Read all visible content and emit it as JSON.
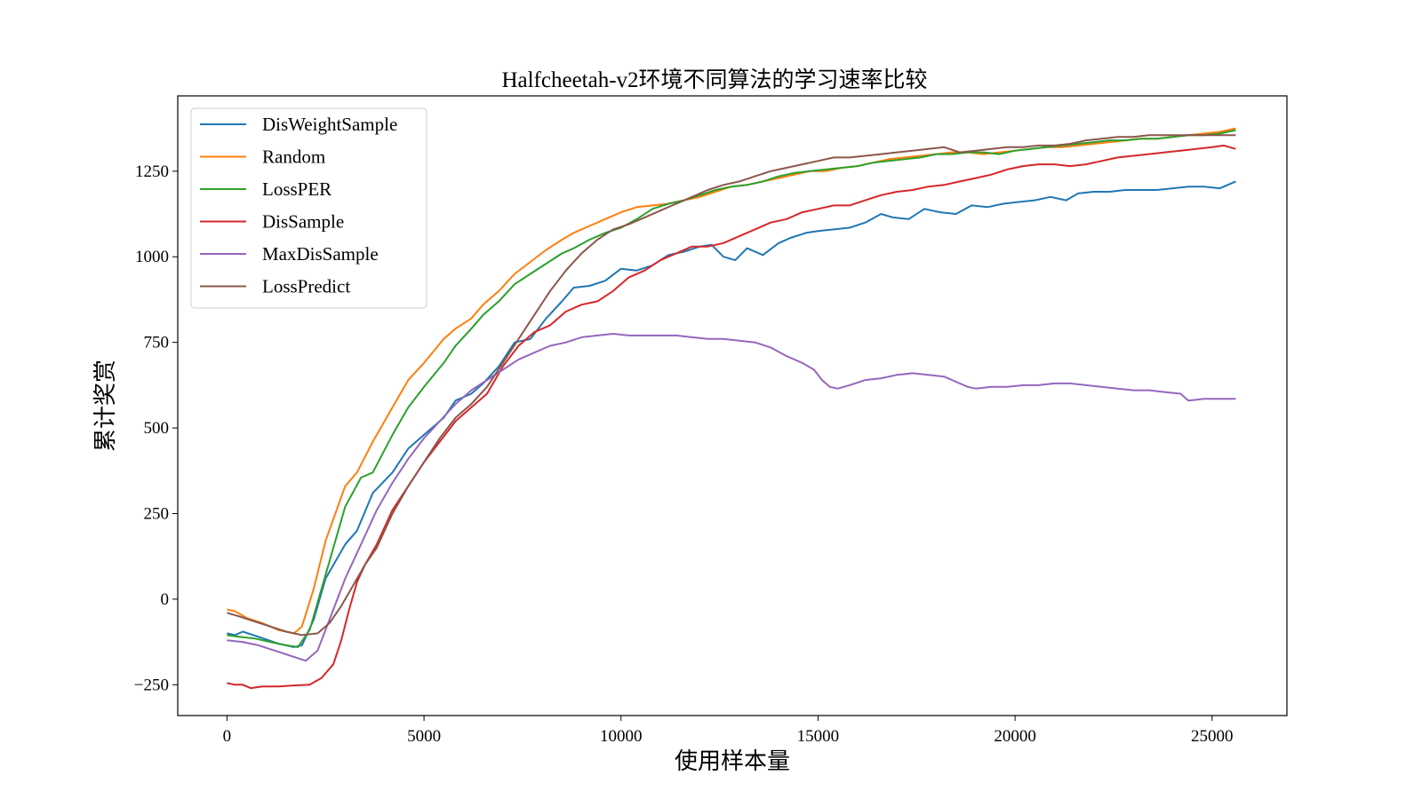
{
  "chart_data": {
    "type": "line",
    "title": "Halfcheetah-v2环境不同算法的学习速率比较",
    "xlabel": "使用样本量",
    "ylabel": "累计奖赏",
    "xlim": [
      -1250,
      26900
    ],
    "ylim": [
      -340,
      1470
    ],
    "xticks": [
      0,
      5000,
      10000,
      15000,
      20000,
      25000
    ],
    "xtick_labels": [
      "0",
      "5000",
      "10000",
      "15000",
      "20000",
      "25000"
    ],
    "yticks": [
      -250,
      0,
      250,
      500,
      750,
      1000,
      1250
    ],
    "ytick_labels": [
      "−250",
      "0",
      "250",
      "500",
      "750",
      "1000",
      "1250"
    ],
    "grid": false,
    "legend_position": "top-left",
    "series": [
      {
        "name": "DisWeightSample",
        "color": "#1f77b4",
        "x": [
          0,
          200,
          400,
          800,
          1300,
          1700,
          1900,
          2200,
          2500,
          3000,
          3300,
          3700,
          4200,
          4600,
          5000,
          5500,
          5800,
          6200,
          6500,
          6900,
          7300,
          7700,
          8100,
          8500,
          8800,
          9200,
          9600,
          10000,
          10400,
          10800,
          11200,
          11600,
          12000,
          12300,
          12600,
          12900,
          13200,
          13600,
          14000,
          14300,
          14700,
          15000,
          15400,
          15800,
          16200,
          16600,
          16900,
          17300,
          17700,
          18100,
          18500,
          18900,
          19300,
          19700,
          20100,
          20500,
          20900,
          21300,
          21600,
          22000,
          22400,
          22800,
          23200,
          23600,
          24000,
          24400,
          24800,
          25200,
          25600
        ],
        "values": [
          -100,
          -105,
          -95,
          -110,
          -130,
          -140,
          -135,
          -60,
          60,
          160,
          200,
          310,
          370,
          440,
          480,
          530,
          580,
          600,
          630,
          680,
          750,
          760,
          820,
          870,
          910,
          915,
          930,
          965,
          960,
          975,
          1005,
          1015,
          1030,
          1035,
          1000,
          990,
          1025,
          1005,
          1040,
          1055,
          1070,
          1075,
          1080,
          1085,
          1100,
          1125,
          1115,
          1110,
          1140,
          1130,
          1125,
          1150,
          1145,
          1155,
          1160,
          1165,
          1175,
          1165,
          1185,
          1190,
          1190,
          1195,
          1195,
          1195,
          1200,
          1205,
          1205,
          1200,
          1220
        ]
      },
      {
        "name": "Random",
        "color": "#ff7f0e",
        "x": [
          0,
          200,
          500,
          900,
          1300,
          1700,
          1900,
          2200,
          2500,
          3000,
          3300,
          3700,
          4200,
          4600,
          5000,
          5500,
          5800,
          6200,
          6500,
          6900,
          7300,
          7700,
          8100,
          8500,
          8800,
          9200,
          9600,
          10000,
          10400,
          10800,
          11200,
          11600,
          12000,
          12400,
          12800,
          13200,
          13600,
          14000,
          14400,
          14800,
          15200,
          15600,
          16000,
          16400,
          16800,
          17200,
          17600,
          18000,
          18400,
          18800,
          19200,
          19600,
          20000,
          20400,
          20800,
          21200,
          21600,
          22000,
          22400,
          22800,
          23200,
          23600,
          24000,
          24400,
          24800,
          25200,
          25600
        ],
        "values": [
          -30,
          -35,
          -55,
          -70,
          -90,
          -100,
          -80,
          30,
          170,
          330,
          370,
          460,
          560,
          640,
          690,
          760,
          790,
          820,
          860,
          900,
          950,
          985,
          1020,
          1050,
          1070,
          1090,
          1110,
          1130,
          1145,
          1150,
          1155,
          1165,
          1175,
          1190,
          1205,
          1210,
          1220,
          1230,
          1240,
          1250,
          1250,
          1260,
          1265,
          1275,
          1285,
          1290,
          1295,
          1300,
          1305,
          1305,
          1300,
          1305,
          1310,
          1315,
          1320,
          1320,
          1325,
          1330,
          1335,
          1340,
          1345,
          1345,
          1350,
          1355,
          1360,
          1365,
          1375
        ]
      },
      {
        "name": "LossPER",
        "color": "#2ca02c",
        "x": [
          0,
          300,
          700,
          1100,
          1500,
          1800,
          2100,
          2400,
          2700,
          3000,
          3400,
          3700,
          4200,
          4600,
          5000,
          5500,
          5800,
          6200,
          6500,
          6900,
          7300,
          7700,
          8100,
          8500,
          8800,
          9200,
          9600,
          10000,
          10400,
          10800,
          11200,
          11600,
          12000,
          12400,
          12800,
          13200,
          13600,
          14000,
          14400,
          14800,
          15200,
          15600,
          16000,
          16400,
          16800,
          17200,
          17600,
          18000,
          18400,
          18800,
          19200,
          19600,
          20000,
          20400,
          20800,
          21200,
          21600,
          22000,
          22400,
          22800,
          23200,
          23600,
          24000,
          24400,
          24800,
          25200,
          25600
        ],
        "values": [
          -105,
          -110,
          -115,
          -125,
          -135,
          -140,
          -90,
          30,
          150,
          270,
          355,
          370,
          480,
          560,
          620,
          690,
          740,
          790,
          830,
          870,
          920,
          950,
          980,
          1010,
          1025,
          1050,
          1070,
          1085,
          1110,
          1140,
          1155,
          1165,
          1180,
          1195,
          1205,
          1210,
          1220,
          1235,
          1245,
          1250,
          1255,
          1260,
          1265,
          1275,
          1280,
          1285,
          1290,
          1300,
          1300,
          1305,
          1305,
          1300,
          1310,
          1315,
          1320,
          1325,
          1330,
          1335,
          1340,
          1340,
          1345,
          1345,
          1350,
          1355,
          1355,
          1360,
          1370
        ]
      },
      {
        "name": "DisSample",
        "color": "#d62728",
        "x": [
          0,
          200,
          400,
          600,
          900,
          1300,
          1700,
          2100,
          2400,
          2700,
          2900,
          3100,
          3300,
          3500,
          3800,
          4200,
          4600,
          5000,
          5400,
          5800,
          6200,
          6600,
          7000,
          7400,
          7800,
          8200,
          8600,
          9000,
          9400,
          9800,
          10200,
          10600,
          11000,
          11400,
          11800,
          12200,
          12600,
          13000,
          13400,
          13800,
          14200,
          14600,
          15000,
          15400,
          15800,
          16200,
          16600,
          17000,
          17400,
          17800,
          18200,
          18600,
          19000,
          19400,
          19800,
          20200,
          20600,
          21000,
          21400,
          21800,
          22200,
          22600,
          23000,
          23400,
          23800,
          24200,
          24600,
          25000,
          25300,
          25600
        ],
        "values": [
          -245,
          -250,
          -250,
          -260,
          -255,
          -255,
          -252,
          -250,
          -230,
          -190,
          -120,
          -30,
          50,
          100,
          160,
          260,
          330,
          400,
          460,
          520,
          560,
          600,
          680,
          740,
          780,
          800,
          840,
          860,
          870,
          900,
          940,
          960,
          990,
          1010,
          1030,
          1030,
          1040,
          1060,
          1080,
          1100,
          1110,
          1130,
          1140,
          1150,
          1150,
          1165,
          1180,
          1190,
          1195,
          1205,
          1210,
          1220,
          1230,
          1240,
          1255,
          1265,
          1270,
          1270,
          1265,
          1270,
          1280,
          1290,
          1295,
          1300,
          1305,
          1310,
          1315,
          1320,
          1325,
          1315
        ]
      },
      {
        "name": "MaxDisSample",
        "color": "#9467bd",
        "x": [
          0,
          400,
          800,
          1200,
          1600,
          2000,
          2300,
          2600,
          3000,
          3400,
          3800,
          4200,
          4600,
          5000,
          5400,
          5800,
          6200,
          6600,
          7000,
          7400,
          7800,
          8200,
          8600,
          9000,
          9400,
          9800,
          10200,
          10600,
          11000,
          11400,
          11800,
          12200,
          12600,
          13000,
          13400,
          13800,
          14200,
          14600,
          14900,
          15100,
          15300,
          15500,
          15800,
          16200,
          16600,
          17000,
          17400,
          17800,
          18200,
          18500,
          18800,
          19000,
          19400,
          19800,
          20200,
          20600,
          21000,
          21400,
          21800,
          22200,
          22600,
          23000,
          23400,
          23800,
          24200,
          24400,
          24800,
          25200,
          25600
        ],
        "values": [
          -120,
          -125,
          -135,
          -150,
          -165,
          -180,
          -150,
          -60,
          60,
          160,
          260,
          340,
          410,
          470,
          520,
          570,
          610,
          640,
          670,
          700,
          720,
          740,
          750,
          765,
          770,
          775,
          770,
          770,
          770,
          770,
          765,
          760,
          760,
          755,
          750,
          735,
          710,
          690,
          670,
          640,
          620,
          615,
          625,
          640,
          645,
          655,
          660,
          655,
          650,
          635,
          620,
          615,
          620,
          620,
          625,
          625,
          630,
          630,
          625,
          620,
          615,
          610,
          610,
          605,
          600,
          580,
          585,
          585,
          585
        ]
      },
      {
        "name": "LossPredict",
        "color": "#8c564b",
        "x": [
          0,
          300,
          700,
          1100,
          1500,
          1900,
          2300,
          2600,
          2900,
          3200,
          3500,
          3800,
          4200,
          4600,
          5000,
          5400,
          5800,
          6200,
          6600,
          7000,
          7400,
          7800,
          8200,
          8600,
          9000,
          9400,
          9800,
          10200,
          10600,
          11000,
          11400,
          11800,
          12200,
          12600,
          13000,
          13400,
          13800,
          14200,
          14600,
          15000,
          15400,
          15800,
          16200,
          16600,
          17000,
          17400,
          17800,
          18200,
          18600,
          19000,
          19400,
          19800,
          20200,
          20600,
          21000,
          21400,
          21800,
          22200,
          22600,
          23000,
          23400,
          23800,
          24200,
          24600,
          25000,
          25300,
          25600
        ],
        "values": [
          -40,
          -50,
          -65,
          -80,
          -95,
          -105,
          -100,
          -70,
          -20,
          40,
          100,
          150,
          250,
          330,
          400,
          470,
          530,
          570,
          620,
          690,
          760,
          830,
          900,
          960,
          1010,
          1050,
          1080,
          1095,
          1115,
          1135,
          1155,
          1175,
          1195,
          1210,
          1220,
          1235,
          1250,
          1260,
          1270,
          1280,
          1290,
          1290,
          1295,
          1300,
          1305,
          1310,
          1315,
          1320,
          1305,
          1310,
          1315,
          1320,
          1320,
          1325,
          1325,
          1330,
          1340,
          1345,
          1350,
          1350,
          1355,
          1355,
          1355,
          1355,
          1355,
          1355,
          1355
        ]
      }
    ]
  }
}
